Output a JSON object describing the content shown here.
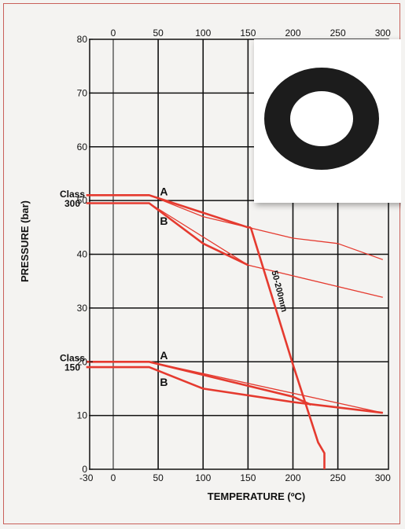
{
  "chart_data": {
    "type": "line",
    "xlabel": "TEMPERATURE (ºC)",
    "ylabel": "PRESSURE (bar)",
    "x_top_ticks": [
      "0",
      "50",
      "100",
      "150",
      "200",
      "250",
      "300"
    ],
    "x_bottom_ticks": [
      "-30",
      "0",
      "50",
      "100",
      "150",
      "200",
      "250",
      "300"
    ],
    "y_ticks": [
      "0",
      "10",
      "20",
      "30",
      "40",
      "50",
      "60",
      "70",
      "80"
    ],
    "xlim": [
      -30,
      300
    ],
    "ylim": [
      0,
      80
    ],
    "grid": true,
    "class_labels": [
      {
        "line1": "Class",
        "line2": "300",
        "y": 50
      },
      {
        "line1": "Class",
        "line2": "150",
        "y": 19.5
      }
    ],
    "curve_labels": [
      {
        "text": "A",
        "x": 52,
        "y": 51
      },
      {
        "text": "B",
        "x": 52,
        "y": 45.5
      },
      {
        "text": "A",
        "x": 52,
        "y": 20.5
      },
      {
        "text": "B",
        "x": 52,
        "y": 15.5
      }
    ],
    "annotation": {
      "text": "50-200mm",
      "x": 182,
      "y": 33,
      "angle": 76
    },
    "series": [
      {
        "style": "thick",
        "x": [
          -30,
          40,
          150,
          153
        ],
        "y": [
          51,
          51,
          45,
          45
        ]
      },
      {
        "style": "thin",
        "x": [
          40,
          100,
          150,
          200,
          250,
          300
        ],
        "y": [
          51,
          47,
          45,
          43,
          42,
          39
        ]
      },
      {
        "style": "thick",
        "x": [
          -30,
          40,
          100,
          150
        ],
        "y": [
          49.5,
          49.5,
          42,
          38
        ]
      },
      {
        "style": "thin",
        "x": [
          40,
          150,
          200,
          300
        ],
        "y": [
          49.5,
          38,
          36,
          32
        ]
      },
      {
        "style": "thick",
        "x": [
          153,
          200,
          228,
          235,
          235
        ],
        "y": [
          45,
          19.5,
          5,
          3,
          0
        ]
      },
      {
        "style": "thick",
        "x": [
          -30,
          40,
          200,
          220
        ],
        "y": [
          20,
          20,
          13.5,
          12
        ]
      },
      {
        "style": "thin",
        "x": [
          40,
          300
        ],
        "y": [
          20,
          10.5
        ]
      },
      {
        "style": "thick",
        "x": [
          -30,
          40,
          100,
          200,
          300
        ],
        "y": [
          19,
          19,
          15,
          12.5,
          10.5
        ]
      }
    ],
    "inset": {
      "image": "black-ring-gasket"
    }
  }
}
